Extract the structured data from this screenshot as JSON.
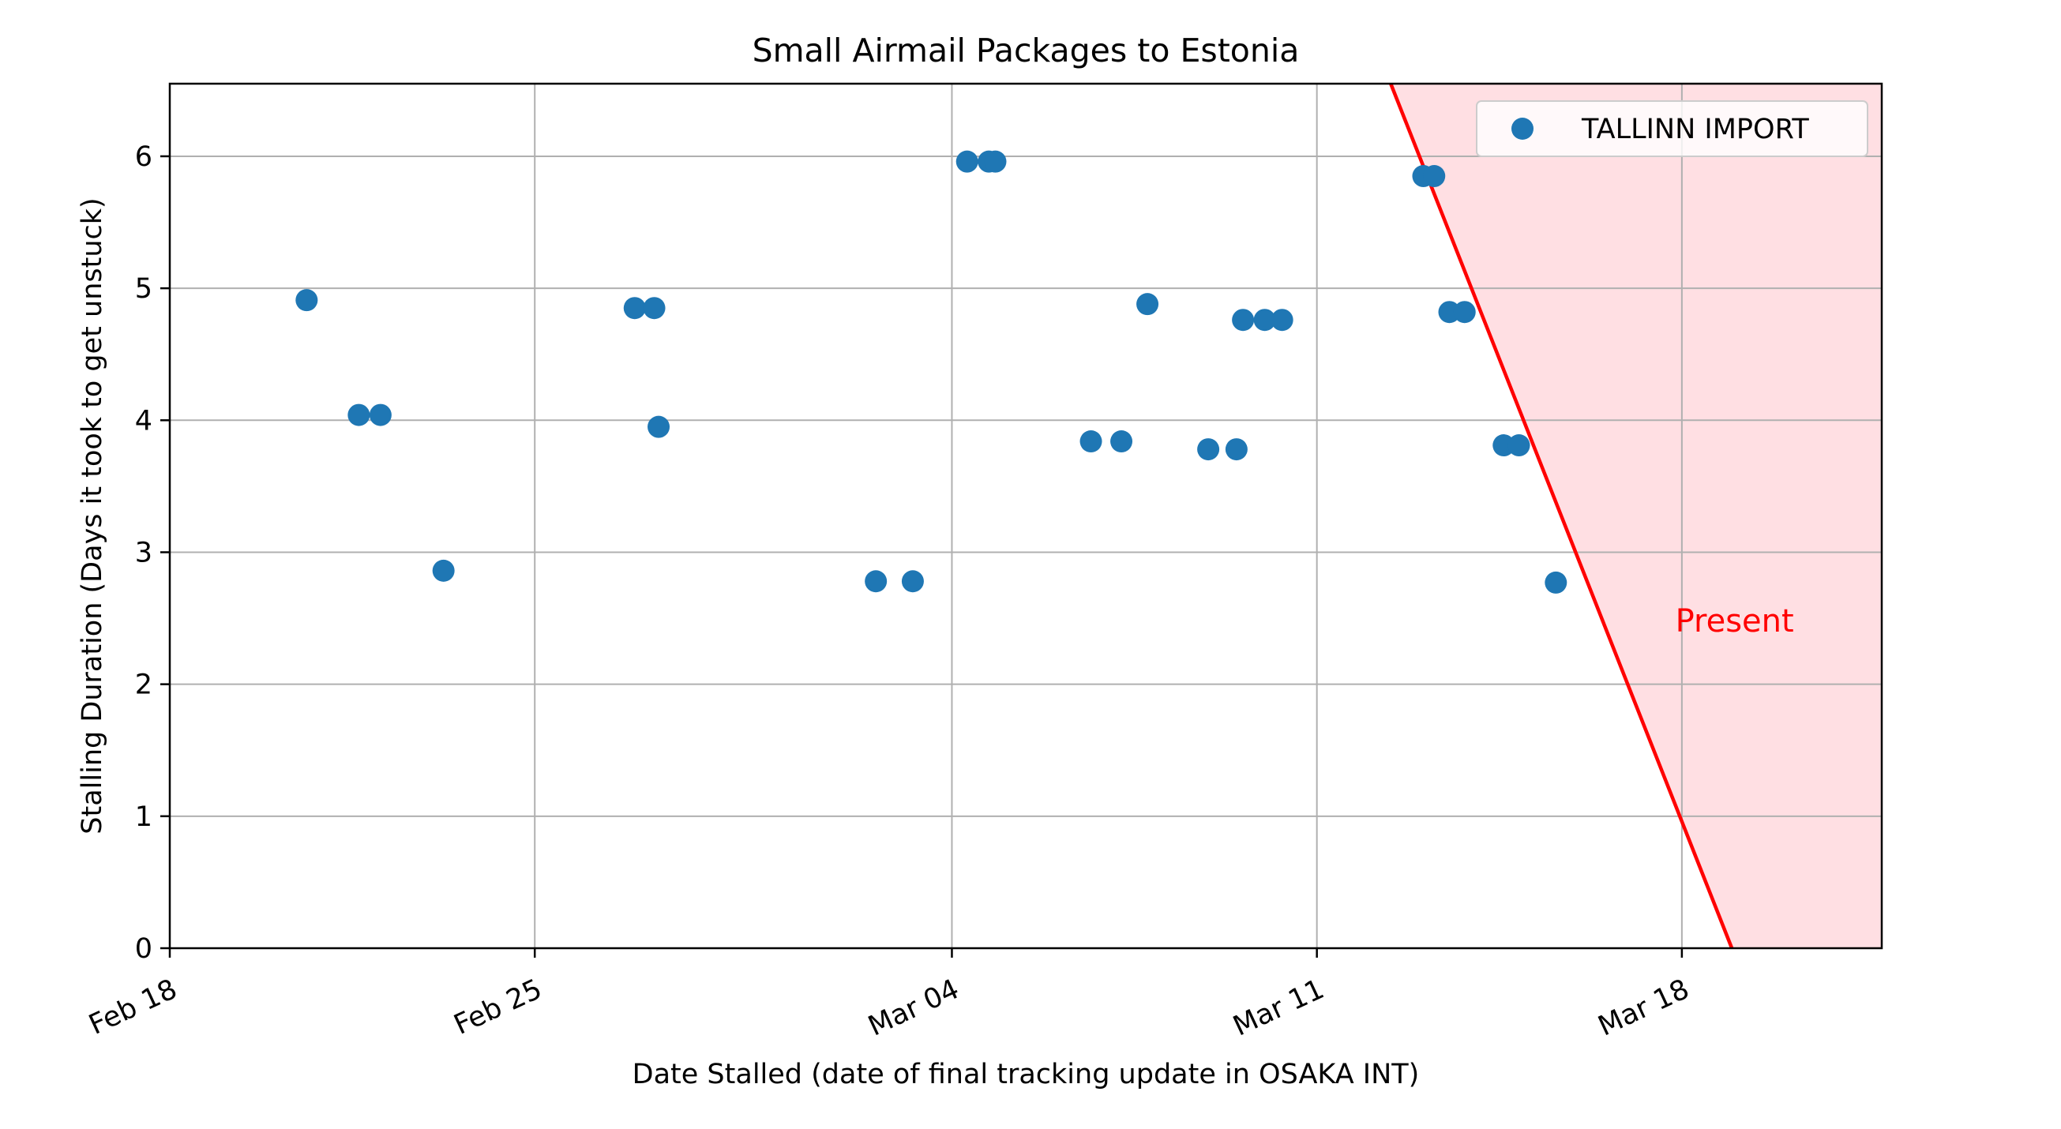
{
  "chart_data": {
    "type": "scatter",
    "title": "Small Airmail Packages to Estonia",
    "xlabel": "Date Stalled (date of final tracking update in OSAKA INT)",
    "ylabel": "Stalling Duration (Days it took to get unstuck)",
    "x_ticks": [
      "2024-02-18",
      "2024-02-25",
      "2024-03-04",
      "2024-03-11",
      "2024-03-18"
    ],
    "x_tick_labels": [
      "Feb 18",
      "Feb 25",
      "Mar 04",
      "Mar 11",
      "Mar 18"
    ],
    "xlim": [
      "2024-02-18",
      "2024-03-21 20:00"
    ],
    "ylim": [
      0,
      6.55
    ],
    "y_ticks": [
      0,
      1,
      2,
      3,
      4,
      5,
      6
    ],
    "grid": true,
    "legend_position": "upper right",
    "series": [
      {
        "name": "TALLINN IMPORT",
        "color": "#1f77b4",
        "points": [
          {
            "x": "2024-02-20 15:00",
            "y": 4.91
          },
          {
            "x": "2024-02-21 15:00",
            "y": 4.04
          },
          {
            "x": "2024-02-22 01:00",
            "y": 4.04
          },
          {
            "x": "2024-02-23 06:00",
            "y": 2.86
          },
          {
            "x": "2024-02-26 22:00",
            "y": 4.85
          },
          {
            "x": "2024-02-27 07:00",
            "y": 4.85
          },
          {
            "x": "2024-02-27 09:00",
            "y": 3.95
          },
          {
            "x": "2024-03-02 13:00",
            "y": 2.78
          },
          {
            "x": "2024-03-03 06:00",
            "y": 2.78
          },
          {
            "x": "2024-03-04 07:00",
            "y": 5.96
          },
          {
            "x": "2024-03-04 17:00",
            "y": 5.96
          },
          {
            "x": "2024-03-04 20:00",
            "y": 5.96
          },
          {
            "x": "2024-03-06 16:00",
            "y": 3.84
          },
          {
            "x": "2024-03-07 06:00",
            "y": 3.84
          },
          {
            "x": "2024-03-07 18:00",
            "y": 4.88
          },
          {
            "x": "2024-03-08 22:00",
            "y": 3.78
          },
          {
            "x": "2024-03-09 11:00",
            "y": 3.78
          },
          {
            "x": "2024-03-09 14:00",
            "y": 4.76
          },
          {
            "x": "2024-03-10 00:00",
            "y": 4.76
          },
          {
            "x": "2024-03-10 08:00",
            "y": 4.76
          },
          {
            "x": "2024-03-13 01:00",
            "y": 5.85
          },
          {
            "x": "2024-03-13 06:00",
            "y": 5.85
          },
          {
            "x": "2024-03-13 13:00",
            "y": 4.82
          },
          {
            "x": "2024-03-13 20:00",
            "y": 4.82
          },
          {
            "x": "2024-03-14 14:00",
            "y": 3.81
          },
          {
            "x": "2024-03-14 21:00",
            "y": 3.81
          },
          {
            "x": "2024-03-15 14:00",
            "y": 2.77
          }
        ]
      }
    ],
    "present_line": {
      "label": "Present",
      "color": "#ff0000",
      "fill_color": "#ffdfe3",
      "points": [
        {
          "x": "2024-03-12 10:00",
          "y": 6.55
        },
        {
          "x": "2024-03-18 23:00",
          "y": 0
        }
      ],
      "label_position": {
        "x": "2024-03-17 21:00",
        "y": 2.4
      }
    }
  }
}
